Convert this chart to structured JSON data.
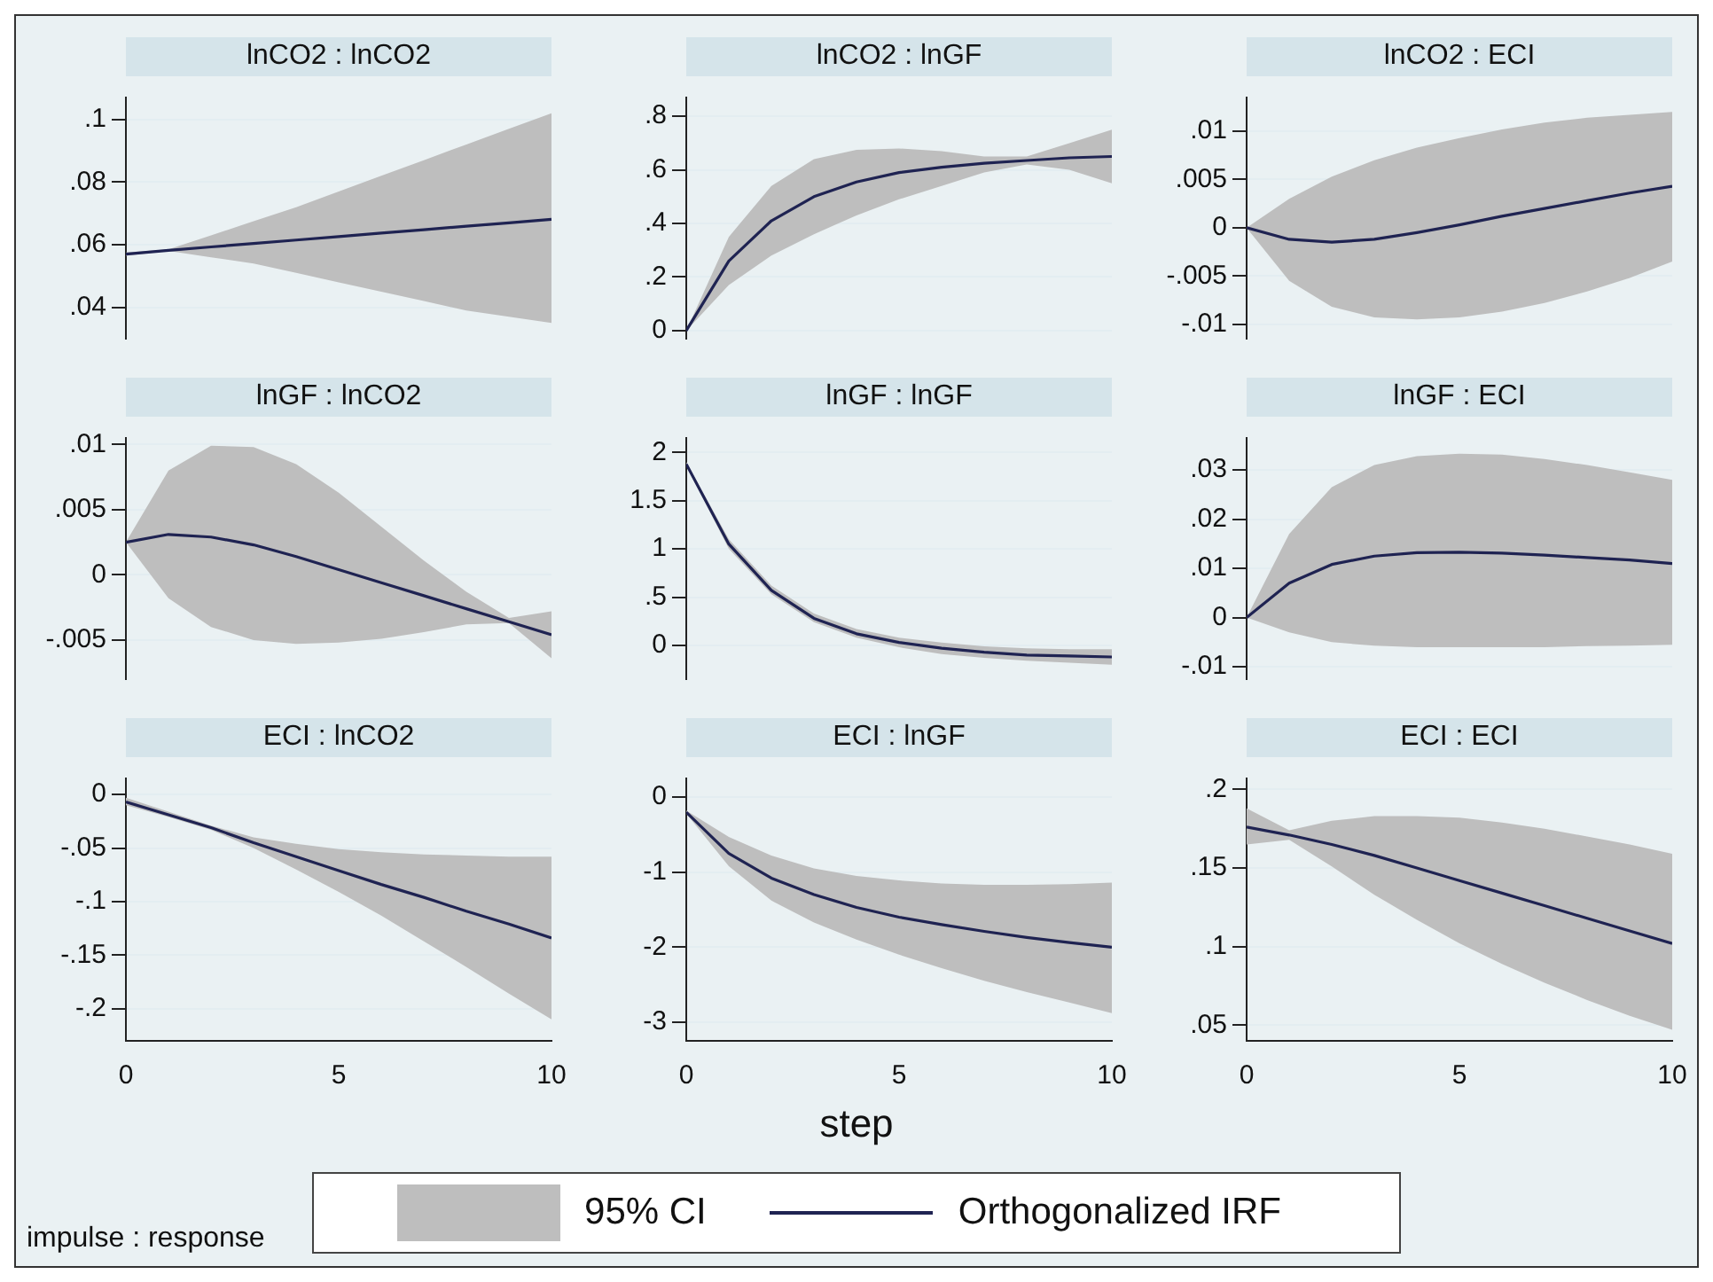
{
  "chart_data": [
    {
      "type": "line",
      "title": "lnCO2 : lnCO2",
      "x": [
        0,
        1,
        2,
        3,
        4,
        5,
        6,
        7,
        8,
        9,
        10
      ],
      "xlim": [
        0,
        10
      ],
      "ylim": [
        0.03,
        0.107
      ],
      "yticks": [
        {
          "value": 0.04,
          "label": ".04"
        },
        {
          "value": 0.06,
          "label": ".06"
        },
        {
          "value": 0.08,
          "label": ".08"
        },
        {
          "value": 0.1,
          "label": ".1"
        }
      ],
      "grid": "y",
      "tick_labels": "y",
      "series": [
        {
          "type": "line",
          "color": "#1f2352",
          "values": [
            0.057,
            0.0582,
            0.0593,
            0.0604,
            0.0615,
            0.0626,
            0.0637,
            0.0648,
            0.0659,
            0.067,
            0.0681
          ],
          "lower": [
            0.0565,
            0.058,
            0.056,
            0.054,
            0.051,
            0.048,
            0.045,
            0.042,
            0.039,
            0.037,
            0.035
          ],
          "upper": [
            0.0575,
            0.0585,
            0.063,
            0.0675,
            0.072,
            0.077,
            0.082,
            0.087,
            0.092,
            0.097,
            0.102
          ]
        }
      ]
    },
    {
      "type": "line",
      "title": "lnCO2 : lnGF",
      "x": [
        0,
        1,
        2,
        3,
        4,
        5,
        6,
        7,
        8,
        9,
        10
      ],
      "xlim": [
        0,
        10
      ],
      "ylim": [
        -0.03,
        0.87
      ],
      "yticks": [
        0,
        {
          "value": 0.2,
          "label": ".2"
        },
        {
          "value": 0.4,
          "label": ".4"
        },
        {
          "value": 0.6,
          "label": ".6"
        },
        {
          "value": 0.8,
          "label": ".8"
        }
      ],
      "grid": "y",
      "tick_labels": "y",
      "series": [
        {
          "type": "line",
          "color": "#1f2352",
          "values": [
            0,
            0.26,
            0.41,
            0.5,
            0.555,
            0.59,
            0.61,
            0.625,
            0.635,
            0.645,
            0.65
          ],
          "lower": [
            0,
            0.17,
            0.28,
            0.36,
            0.43,
            0.49,
            0.54,
            0.59,
            0.62,
            0.6,
            0.55
          ],
          "upper": [
            0,
            0.35,
            0.54,
            0.64,
            0.675,
            0.68,
            0.67,
            0.65,
            0.65,
            0.7,
            0.75
          ]
        }
      ]
    },
    {
      "type": "line",
      "title": "lnCO2 : ECI",
      "x": [
        0,
        1,
        2,
        3,
        4,
        5,
        6,
        7,
        8,
        9,
        10
      ],
      "xlim": [
        0,
        10
      ],
      "ylim": [
        -0.0115,
        0.0135
      ],
      "yticks": [
        {
          "value": -0.01,
          "label": "-.01"
        },
        {
          "value": -0.005,
          "label": "-.005"
        },
        0,
        {
          "value": 0.005,
          "label": ".005"
        },
        {
          "value": 0.01,
          "label": ".01"
        }
      ],
      "grid": "y",
      "tick_labels": "y",
      "series": [
        {
          "type": "line",
          "color": "#1f2352",
          "values": [
            0,
            -0.0012,
            -0.0015,
            -0.0012,
            -0.0005,
            0.0003,
            0.0012,
            0.002,
            0.0028,
            0.0036,
            0.0043
          ],
          "lower": [
            0,
            -0.0055,
            -0.0082,
            -0.0093,
            -0.0095,
            -0.0093,
            -0.0087,
            -0.0078,
            -0.0066,
            -0.0052,
            -0.0035
          ],
          "upper": [
            0,
            0.003,
            0.0053,
            0.007,
            0.0083,
            0.0093,
            0.0102,
            0.0109,
            0.0114,
            0.0117,
            0.012
          ]
        }
      ]
    },
    {
      "type": "line",
      "title": "lnGF : lnCO2",
      "x": [
        0,
        1,
        2,
        3,
        4,
        5,
        6,
        7,
        8,
        9,
        10
      ],
      "xlim": [
        0,
        10
      ],
      "ylim": [
        -0.008,
        0.0105
      ],
      "yticks": [
        {
          "value": -0.005,
          "label": "-.005"
        },
        0,
        {
          "value": 0.005,
          "label": ".005"
        },
        {
          "value": 0.01,
          "label": ".01"
        }
      ],
      "grid": "y",
      "tick_labels": "y",
      "series": [
        {
          "type": "line",
          "color": "#1f2352",
          "values": [
            0.0025,
            0.0031,
            0.0029,
            0.0023,
            0.0014,
            0.0004,
            -0.0006,
            -0.0016,
            -0.0026,
            -0.0036,
            -0.0046
          ],
          "lower": [
            0.0025,
            -0.0018,
            -0.004,
            -0.005,
            -0.0053,
            -0.0052,
            -0.0049,
            -0.0044,
            -0.0038,
            -0.0037,
            -0.0064
          ],
          "upper": [
            0.0025,
            0.008,
            0.0099,
            0.0098,
            0.0085,
            0.0063,
            0.0037,
            0.0011,
            -0.0013,
            -0.0033,
            -0.0028
          ]
        }
      ]
    },
    {
      "type": "line",
      "title": "lnGF : lnGF",
      "x": [
        0,
        1,
        2,
        3,
        4,
        5,
        6,
        7,
        8,
        9,
        10
      ],
      "xlim": [
        0,
        10
      ],
      "ylim": [
        -0.35,
        2.15
      ],
      "yticks": [
        0,
        {
          "value": 0.5,
          "label": ".5"
        },
        1,
        1.5,
        2
      ],
      "grid": "y",
      "tick_labels": "y",
      "series": [
        {
          "type": "line",
          "color": "#1f2352",
          "values": [
            1.88,
            1.05,
            0.57,
            0.28,
            0.12,
            0.03,
            -0.03,
            -0.07,
            -0.1,
            -0.11,
            -0.12
          ],
          "lower": [
            1.86,
            1,
            0.53,
            0.24,
            0.08,
            -0.02,
            -0.09,
            -0.13,
            -0.16,
            -0.18,
            -0.2
          ],
          "upper": [
            1.9,
            1.1,
            0.62,
            0.33,
            0.17,
            0.08,
            0.03,
            -0.01,
            -0.03,
            -0.04,
            -0.04
          ]
        }
      ]
    },
    {
      "type": "line",
      "title": "lnGF : ECI",
      "x": [
        0,
        1,
        2,
        3,
        4,
        5,
        6,
        7,
        8,
        9,
        10
      ],
      "xlim": [
        0,
        10
      ],
      "ylim": [
        -0.0125,
        0.0365
      ],
      "yticks": [
        {
          "value": -0.01,
          "label": "-.01"
        },
        0,
        {
          "value": 0.01,
          "label": ".01"
        },
        {
          "value": 0.02,
          "label": ".02"
        },
        {
          "value": 0.03,
          "label": ".03"
        }
      ],
      "grid": "y",
      "tick_labels": "y",
      "series": [
        {
          "type": "line",
          "color": "#1f2352",
          "values": [
            0,
            0.007,
            0.0108,
            0.0125,
            0.0132,
            0.0133,
            0.0131,
            0.0127,
            0.0122,
            0.0117,
            0.011
          ],
          "lower": [
            0,
            -0.003,
            -0.005,
            -0.0057,
            -0.006,
            -0.006,
            -0.006,
            -0.006,
            -0.0058,
            -0.0057,
            -0.0055
          ],
          "upper": [
            0,
            0.017,
            0.0265,
            0.031,
            0.0328,
            0.0333,
            0.0331,
            0.0322,
            0.031,
            0.0295,
            0.028
          ]
        }
      ]
    },
    {
      "type": "line",
      "title": "ECI : lnCO2",
      "x": [
        0,
        1,
        2,
        3,
        4,
        5,
        6,
        7,
        8,
        9,
        10
      ],
      "xlim": [
        0,
        10
      ],
      "xticks": [
        0,
        5,
        10
      ],
      "ylim": [
        -0.23,
        0.015
      ],
      "yticks": [
        {
          "value": -0.2,
          "label": "-.2"
        },
        {
          "value": -0.15,
          "label": "-.15"
        },
        {
          "value": -0.1,
          "label": "-.1"
        },
        {
          "value": -0.05,
          "label": "-.05"
        },
        0
      ],
      "grid": "y",
      "series": [
        {
          "type": "line",
          "color": "#1f2352",
          "values": [
            -0.007,
            -0.019,
            -0.031,
            -0.045,
            -0.058,
            -0.071,
            -0.084,
            -0.096,
            -0.109,
            -0.121,
            -0.134
          ],
          "lower": [
            -0.01,
            -0.021,
            -0.033,
            -0.05,
            -0.07,
            -0.091,
            -0.113,
            -0.137,
            -0.161,
            -0.186,
            -0.21
          ],
          "upper": [
            -0.003,
            -0.016,
            -0.029,
            -0.04,
            -0.046,
            -0.051,
            -0.054,
            -0.056,
            -0.057,
            -0.058,
            -0.058
          ]
        }
      ]
    },
    {
      "type": "line",
      "title": "ECI : lnGF",
      "xlabel": "step",
      "x": [
        0,
        1,
        2,
        3,
        4,
        5,
        6,
        7,
        8,
        9,
        10
      ],
      "xlim": [
        0,
        10
      ],
      "xticks": [
        0,
        5,
        10
      ],
      "ylim": [
        -3.25,
        0.25
      ],
      "yticks": [
        -3,
        -2,
        -1,
        0
      ],
      "grid": "y",
      "legend": "bottom",
      "annotations": [
        "95% CI",
        "impulse : response"
      ],
      "series": [
        {
          "type": "line",
          "name": "Orthogonalized IRF",
          "color": "#1f2352",
          "values": [
            -0.2,
            -0.75,
            -1.08,
            -1.3,
            -1.47,
            -1.6,
            -1.7,
            -1.79,
            -1.87,
            -1.94,
            -2
          ],
          "lower": [
            -0.22,
            -0.92,
            -1.38,
            -1.67,
            -1.9,
            -2.1,
            -2.28,
            -2.45,
            -2.6,
            -2.74,
            -2.88
          ],
          "upper": [
            -0.18,
            -0.53,
            -0.78,
            -0.95,
            -1.05,
            -1.11,
            -1.15,
            -1.17,
            -1.17,
            -1.16,
            -1.14
          ]
        }
      ]
    },
    {
      "type": "line",
      "title": "ECI : ECI",
      "x": [
        0,
        1,
        2,
        3,
        4,
        5,
        6,
        7,
        8,
        9,
        10
      ],
      "xlim": [
        0,
        10
      ],
      "xticks": [
        0,
        5,
        10
      ],
      "ylim": [
        0.04,
        0.207
      ],
      "yticks": [
        {
          "value": 0.05,
          "label": ".05"
        },
        {
          "value": 0.1,
          "label": ".1"
        },
        {
          "value": 0.15,
          "label": ".15"
        },
        {
          "value": 0.2,
          "label": ".2"
        }
      ],
      "grid": "y",
      "series": [
        {
          "type": "line",
          "color": "#1f2352",
          "values": [
            0.176,
            0.171,
            0.165,
            0.158,
            0.15,
            0.142,
            0.134,
            0.126,
            0.118,
            0.11,
            0.102
          ],
          "lower": [
            0.165,
            0.168,
            0.151,
            0.133,
            0.117,
            0.102,
            0.089,
            0.077,
            0.066,
            0.056,
            0.047
          ],
          "upper": [
            0.188,
            0.174,
            0.18,
            0.183,
            0.183,
            0.182,
            0.179,
            0.175,
            0.17,
            0.165,
            0.159
          ]
        }
      ]
    }
  ]
}
